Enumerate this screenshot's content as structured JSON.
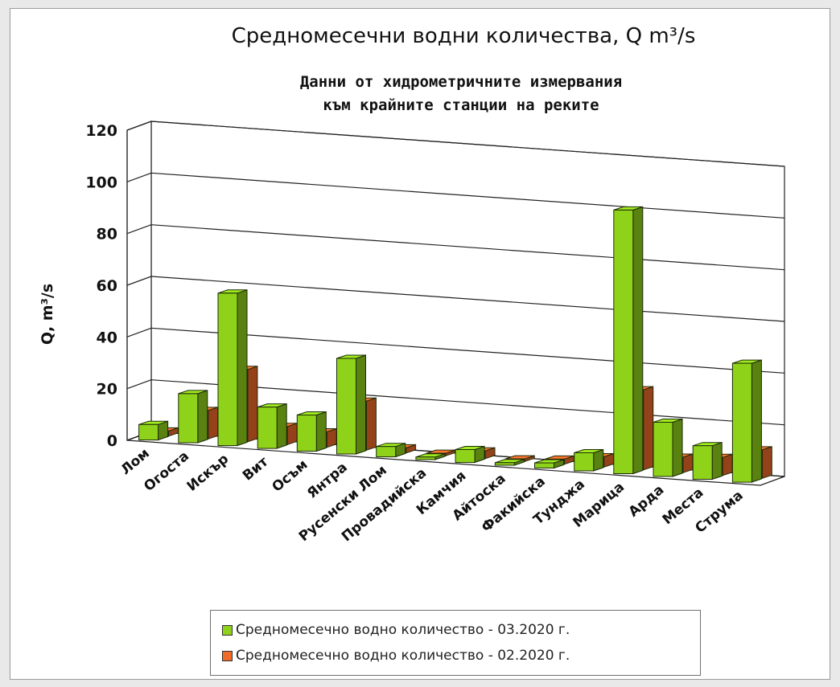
{
  "chart_data": {
    "type": "bar",
    "title": "Средномесечни водни количества, Q m³/s",
    "subtitle_lines": [
      "Данни от хидрометричните измервания",
      "към крайните станции на реките"
    ],
    "ylabel": "Q, m³/s",
    "ylim": [
      0,
      120
    ],
    "yticks": [
      0,
      20,
      40,
      60,
      80,
      100,
      120
    ],
    "grid": true,
    "three_d": true,
    "legend_position": "bottom",
    "categories": [
      "Лом",
      "Огоста",
      "Искър",
      "Вит",
      "Осъм",
      "Янтра",
      "Русенски Лом",
      "Провадийска",
      "Камчия",
      "Айтоска",
      "Факийска",
      "Тунджа",
      "Марица",
      "Арда",
      "Места",
      "Струма"
    ],
    "series": [
      {
        "name": "Средномесечно водно количество - 03.2020 г.",
        "color": "#8fd21a",
        "values": [
          6,
          19,
          59,
          16,
          14,
          37,
          4,
          1,
          5,
          1,
          2,
          7,
          102,
          21,
          13,
          46
        ]
      },
      {
        "name": "Средномесечно водно количество - 02.2020 г.",
        "color": "#f06a2a",
        "values": [
          2,
          11,
          28,
          7,
          6,
          19,
          2,
          1,
          3,
          1,
          2,
          4,
          31,
          6,
          7,
          11
        ]
      }
    ]
  }
}
